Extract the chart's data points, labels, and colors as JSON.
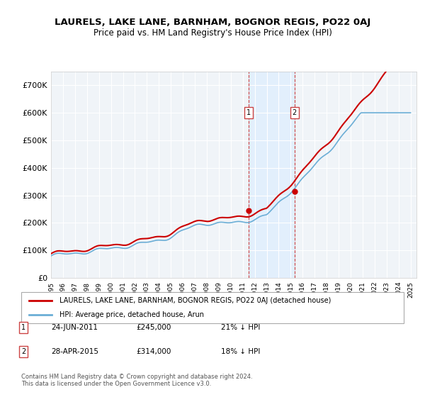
{
  "title": "LAURELS, LAKE LANE, BARNHAM, BOGNOR REGIS, PO22 0AJ",
  "subtitle": "Price paid vs. HM Land Registry's House Price Index (HPI)",
  "ylabel_ticks": [
    "£0",
    "£100K",
    "£200K",
    "£300K",
    "£400K",
    "£500K",
    "£600K",
    "£700K"
  ],
  "ylim": [
    0,
    750000
  ],
  "xlim_start": 1995,
  "xlim_end": 2025,
  "hpi_color": "#6baed6",
  "price_color": "#cc0000",
  "transaction1": {
    "date": "2011-06-24",
    "price": 245000,
    "label": "1",
    "x": 2011.48
  },
  "transaction2": {
    "date": "2015-04-28",
    "price": 314000,
    "label": "2",
    "x": 2015.32
  },
  "legend_label_price": "LAURELS, LAKE LANE, BARNHAM, BOGNOR REGIS, PO22 0AJ (detached house)",
  "legend_label_hpi": "HPI: Average price, detached house, Arun",
  "note1_label": "1",
  "note1_date": "24-JUN-2011",
  "note1_price": "£245,000",
  "note1_hpi": "21% ↓ HPI",
  "note2_label": "2",
  "note2_date": "28-APR-2015",
  "note2_price": "£314,000",
  "note2_hpi": "18% ↓ HPI",
  "copyright": "Contains HM Land Registry data © Crown copyright and database right 2024.\nThis data is licensed under the Open Government Licence v3.0.",
  "background_color": "#ffffff",
  "plot_bg_color": "#f5f5f5"
}
